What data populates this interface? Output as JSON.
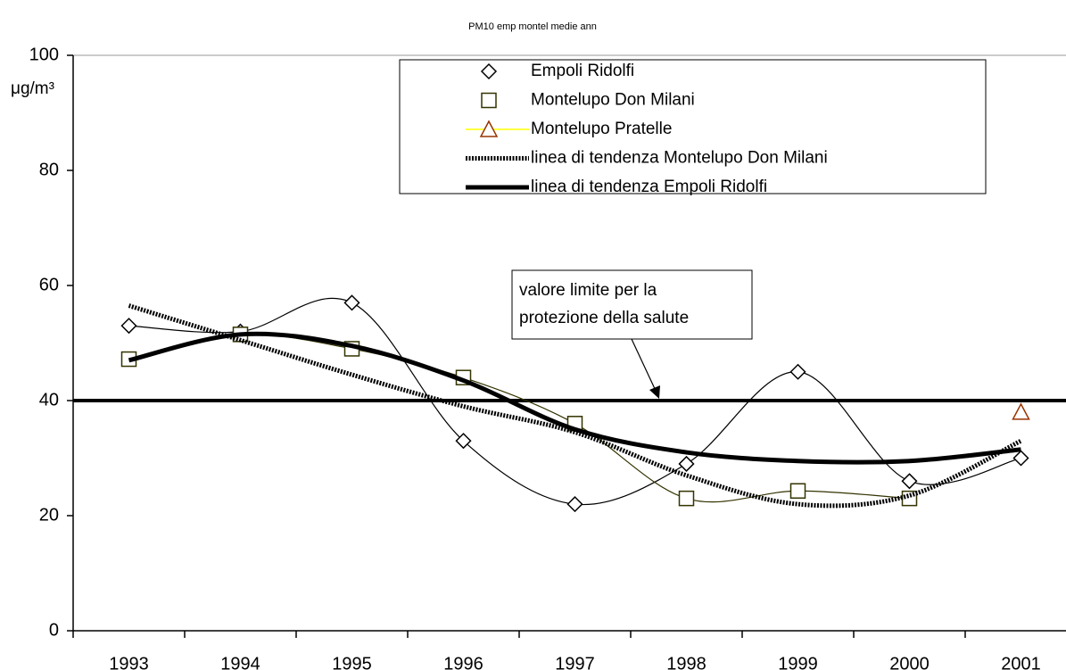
{
  "chart_data": {
    "type": "line",
    "title": "PM10 emp montel medie ann",
    "y_label": "μg/m³",
    "categories": [
      "1993",
      "1994",
      "1995",
      "1996",
      "1997",
      "1998",
      "1999",
      "2000",
      "2001"
    ],
    "series": [
      {
        "name": "Empoli Ridolfi",
        "color": "#000000",
        "marker": "diamond",
        "line": "smooth",
        "values": [
          53,
          52,
          57,
          33,
          22,
          29,
          45,
          26,
          30
        ]
      },
      {
        "name": "Montelupo Don Milani",
        "color": "#333300",
        "marker": "square",
        "line": "smooth",
        "values": [
          47.2,
          51.5,
          49,
          44,
          36,
          23,
          24.3,
          23,
          null
        ]
      },
      {
        "name": "Montelupo Pratelle",
        "color": "#993300",
        "marker": "triangle",
        "line": "none",
        "legend_line_color": "#ffff00",
        "values": [
          null,
          null,
          null,
          null,
          null,
          null,
          null,
          null,
          38
        ]
      },
      {
        "name": "linea di tendenza Montelupo Don Milani",
        "color": "#000000",
        "marker": "none",
        "line": "dashed",
        "values": [
          56.5,
          50.5,
          44.5,
          39,
          34.5,
          27,
          22,
          23.5,
          33
        ]
      },
      {
        "name": "linea di tendenza Empoli Ridolfi",
        "color": "#000000",
        "marker": "none",
        "line": "solid",
        "values": [
          47,
          51.5,
          49.5,
          43.5,
          35,
          31,
          29.5,
          29.5,
          31.5
        ]
      }
    ],
    "limit_line": 40,
    "annotation": [
      "valore limite per la",
      "protezione della salute"
    ],
    "ylim": [
      0,
      100
    ],
    "yticks": [
      0,
      20,
      40,
      60,
      80,
      100
    ],
    "grid": false
  }
}
